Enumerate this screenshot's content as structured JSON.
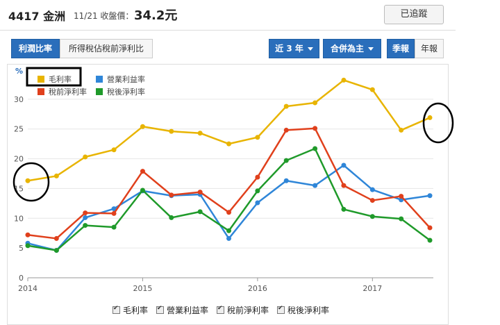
{
  "header": {
    "code_name": "4417 金洲",
    "date_label": "11/21 收盤價：",
    "price": "34.2元",
    "track_label": "已追蹤"
  },
  "toolbar": {
    "tab_profit": "利潤比率",
    "tab_pretax": "所得稅佔稅前淨利比",
    "period": "近 3 年",
    "consolidated": "合併為主",
    "quarterly": "季報",
    "annual": "年報"
  },
  "colors": {
    "gross": "#e8b400",
    "operating": "#2f86d8",
    "pretax": "#e0401c",
    "aftertax": "#1f9a2a",
    "accent": "#2a6ebb"
  },
  "chart_data": {
    "type": "line",
    "title": "",
    "xlabel": "",
    "ylabel": "%",
    "ylim": [
      0,
      35
    ],
    "yticks": [
      0,
      5,
      10,
      15,
      20,
      25,
      30
    ],
    "xlim": [
      2014.0,
      2017.53
    ],
    "xticks": [
      2014,
      2015,
      2016,
      2017
    ],
    "x": [
      2014.0,
      2014.25,
      2014.5,
      2014.75,
      2015.0,
      2015.25,
      2015.5,
      2015.75,
      2016.0,
      2016.25,
      2016.5,
      2016.75,
      2017.0,
      2017.25,
      2017.5
    ],
    "grid": true,
    "legend_position": "top-left",
    "series": [
      {
        "name": "毛利率",
        "color": "#e8b400",
        "values": [
          16.3,
          17.1,
          20.3,
          21.5,
          25.4,
          24.6,
          24.3,
          22.5,
          23.6,
          28.8,
          29.4,
          33.2,
          31.6,
          24.8,
          26.9
        ]
      },
      {
        "name": "營業利益率",
        "color": "#2f86d8",
        "values": [
          5.8,
          4.6,
          10.1,
          11.6,
          14.6,
          13.8,
          14.0,
          6.6,
          12.6,
          16.3,
          15.5,
          18.9,
          14.8,
          13.1,
          13.8
        ]
      },
      {
        "name": "稅前淨利率",
        "color": "#e0401c",
        "values": [
          7.2,
          6.6,
          10.9,
          10.8,
          17.9,
          13.9,
          14.4,
          11.0,
          16.9,
          24.8,
          25.1,
          15.5,
          13.0,
          13.7,
          8.4
        ]
      },
      {
        "name": "稅後淨利率",
        "color": "#1f9a2a",
        "values": [
          5.4,
          4.6,
          8.8,
          8.5,
          14.7,
          10.1,
          11.1,
          7.9,
          14.6,
          19.7,
          21.7,
          11.5,
          10.3,
          9.9,
          6.3
        ]
      }
    ]
  },
  "legend_bottom": [
    "毛利率",
    "營業利益率",
    "稅前淨利率",
    "稅後淨利率"
  ]
}
